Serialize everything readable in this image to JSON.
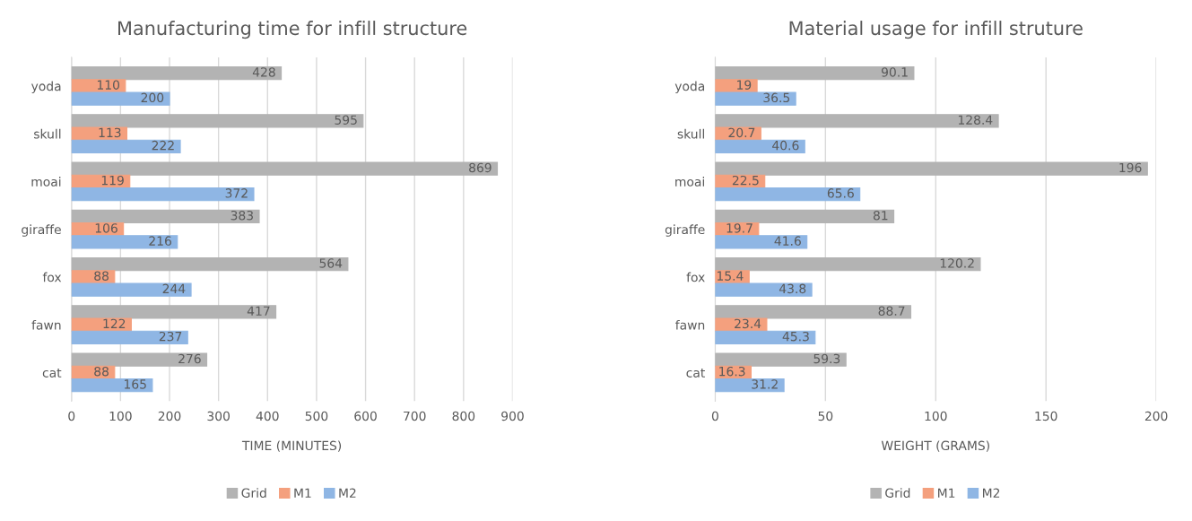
{
  "chart_data": [
    {
      "type": "bar",
      "orientation": "horizontal",
      "title": "Manufacturing time for infill structure",
      "xlabel": "TIME (MINUTES)",
      "categories": [
        "yoda",
        "skull",
        "moai",
        "giraffe",
        "fox",
        "fawn",
        "cat"
      ],
      "xlim": [
        0,
        900
      ],
      "xticks": [
        0,
        100,
        200,
        300,
        400,
        500,
        600,
        700,
        800,
        900
      ],
      "grid": "x",
      "legend": "bottom",
      "data_labels": true,
      "series": [
        {
          "name": "Grid",
          "color": "#b3b3b3",
          "values": [
            428,
            595,
            869,
            383,
            564,
            417,
            276
          ]
        },
        {
          "name": "M1",
          "color": "#f4a07e",
          "values": [
            110,
            113,
            119,
            106,
            88,
            122,
            88
          ]
        },
        {
          "name": "M2",
          "color": "#8fb6e4",
          "values": [
            200,
            222,
            372,
            216,
            244,
            237,
            165
          ]
        }
      ]
    },
    {
      "type": "bar",
      "orientation": "horizontal",
      "title": "Material usage for infill struture",
      "xlabel": "WEIGHT (GRAMS)",
      "categories": [
        "yoda",
        "skull",
        "moai",
        "giraffe",
        "fox",
        "fawn",
        "cat"
      ],
      "xlim": [
        0,
        200
      ],
      "xticks": [
        0,
        50,
        100,
        150,
        200
      ],
      "grid": "x",
      "legend": "bottom",
      "data_labels": true,
      "series": [
        {
          "name": "Grid",
          "color": "#b3b3b3",
          "values": [
            90.1,
            128.4,
            196,
            81,
            120.2,
            88.7,
            59.3
          ]
        },
        {
          "name": "M1",
          "color": "#f4a07e",
          "values": [
            19,
            20.7,
            22.5,
            19.7,
            15.4,
            23.4,
            16.3
          ]
        },
        {
          "name": "M2",
          "color": "#8fb6e4",
          "values": [
            36.5,
            40.6,
            65.6,
            41.6,
            43.8,
            45.3,
            31.2
          ]
        }
      ]
    }
  ]
}
